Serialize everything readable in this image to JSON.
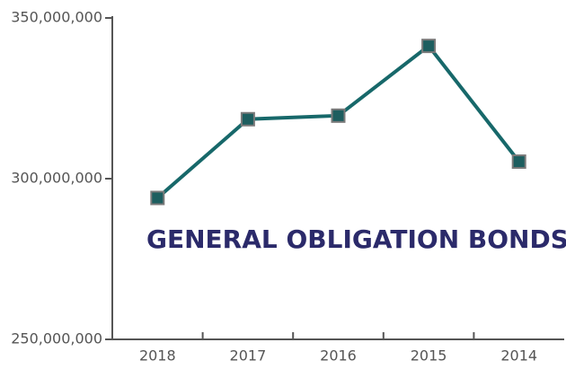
{
  "chart_data": {
    "type": "line",
    "annotation": "GENERAL OBLIGATION BONDS",
    "categories": [
      "2018",
      "2017",
      "2016",
      "2015",
      "2014"
    ],
    "values": [
      294000000,
      318500000,
      319600000,
      341300000,
      305300000
    ],
    "color": "#17686a",
    "ylim": [
      250000000,
      350000000
    ],
    "yticks": [
      {
        "value": 250000000,
        "label": "250,000,000"
      },
      {
        "value": 300000000,
        "label": "300,000,000"
      },
      {
        "value": 350000000,
        "label": "350,000,000"
      }
    ],
    "grid": false
  }
}
